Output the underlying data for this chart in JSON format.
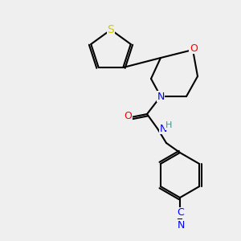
{
  "bg_color": "#efefef",
  "bond_color": "#000000",
  "bond_width": 1.5,
  "atom_colors": {
    "S": "#cccc00",
    "O": "#ff0000",
    "N": "#0000ff",
    "NH": "#0000ff",
    "C": "#000000",
    "CN": "#0000ff",
    "H": "#4a9090"
  },
  "font_size": 9,
  "font_size_small": 8
}
